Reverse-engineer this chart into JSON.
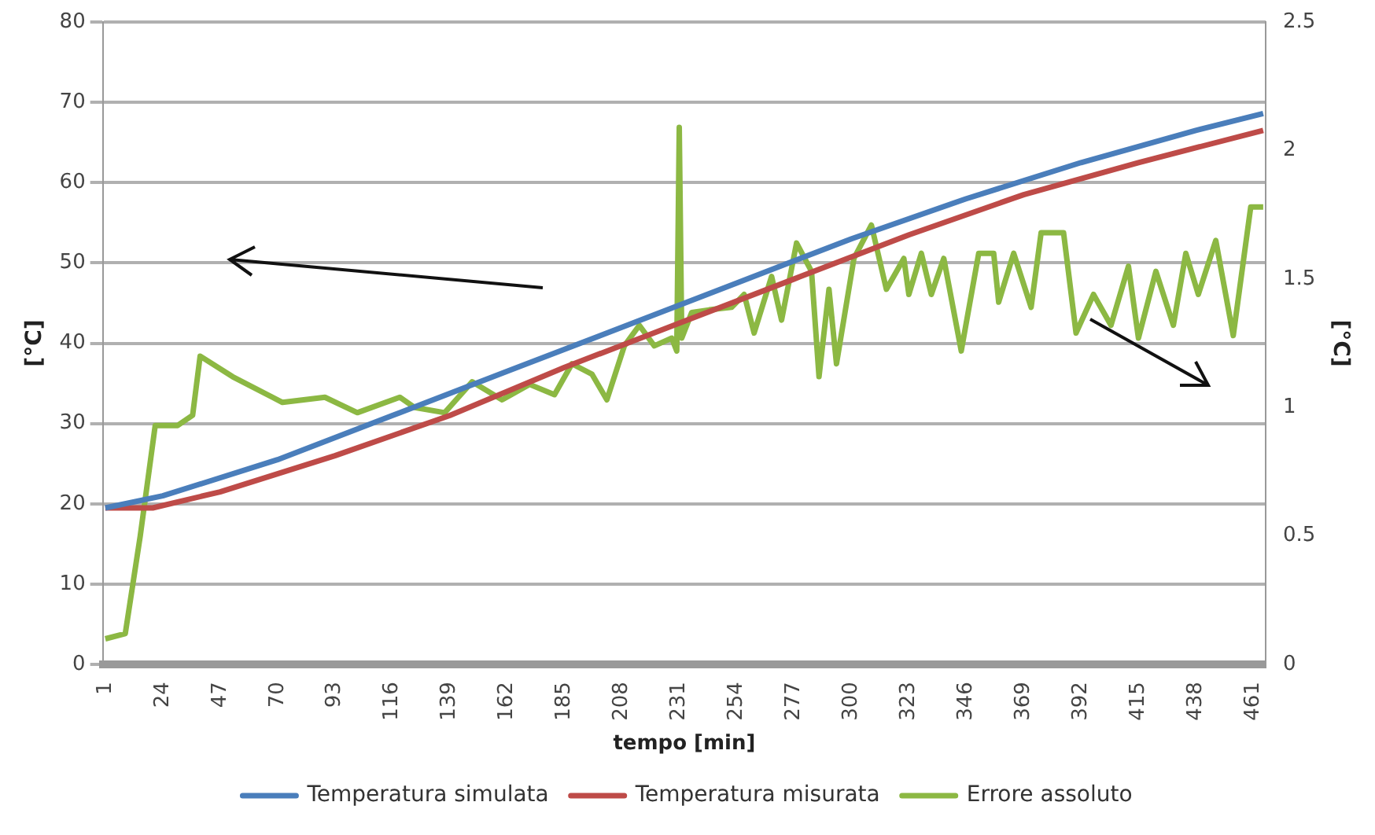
{
  "chart_data": {
    "type": "line",
    "xlabel": "tempo [min]",
    "ylabel": "[°C]",
    "y2label": "[°C]",
    "xlim": [
      0,
      466
    ],
    "xticks": [
      1,
      24,
      47,
      70,
      93,
      116,
      139,
      162,
      185,
      208,
      231,
      254,
      277,
      300,
      323,
      346,
      369,
      392,
      415,
      438,
      461
    ],
    "ylim": [
      0,
      80
    ],
    "yticks": [
      0,
      10,
      20,
      30,
      40,
      50,
      60,
      70,
      80
    ],
    "y2lim": [
      0,
      2.5
    ],
    "y2ticks": [
      0,
      0.5,
      1,
      1.5,
      2,
      2.5
    ],
    "grid": "y",
    "legend": "bottom",
    "marker": "none",
    "line_style": "solid",
    "series": [
      {
        "name": "Temperatura simulata",
        "color": "#4a7ebb",
        "x": [
          1,
          24,
          70,
          116,
          162,
          208,
          254,
          300,
          346,
          392,
          438,
          465
        ],
        "values": [
          19.5,
          21,
          25.5,
          31,
          36.5,
          42,
          47.5,
          53,
          58,
          62.5,
          66.5,
          68.6
        ]
      },
      {
        "name": "Temperatura misurata",
        "color": "#be4b48",
        "x": [
          1,
          20,
          47,
          93,
          139,
          185,
          231,
          277,
          323,
          369,
          415,
          465
        ],
        "values": [
          19.5,
          19.5,
          21.5,
          26,
          31,
          37,
          42.5,
          48,
          53.5,
          58.5,
          62.5,
          66.5
        ]
      },
      {
        "name": "Errore assoluto",
        "color": "#8cb843",
        "axis": "y2",
        "x": [
          1,
          9,
          15,
          21,
          30,
          36,
          39,
          52,
          72,
          89,
          102,
          119,
          125,
          137,
          148,
          160,
          171,
          181,
          188,
          196,
          202,
          209,
          215,
          221,
          228,
          230,
          231,
          232,
          236,
          243,
          252,
          257,
          261,
          268,
          272,
          278,
          284,
          287,
          291,
          294,
          301,
          308,
          314,
          321,
          323,
          328,
          332,
          337,
          344,
          351,
          357,
          359,
          365,
          372,
          376,
          385,
          390,
          397,
          404,
          411,
          415,
          422,
          429,
          434,
          439,
          446,
          453,
          460,
          465
        ],
        "values": [
          0.1,
          0.12,
          0.5,
          0.93,
          0.93,
          0.97,
          1.2,
          1.12,
          1.02,
          1.04,
          0.98,
          1.04,
          1.0,
          0.98,
          1.1,
          1.03,
          1.09,
          1.05,
          1.17,
          1.13,
          1.03,
          1.24,
          1.32,
          1.24,
          1.27,
          1.22,
          2.09,
          1.27,
          1.37,
          1.38,
          1.39,
          1.44,
          1.29,
          1.51,
          1.34,
          1.64,
          1.53,
          1.12,
          1.46,
          1.17,
          1.58,
          1.71,
          1.46,
          1.58,
          1.44,
          1.6,
          1.44,
          1.58,
          1.22,
          1.6,
          1.6,
          1.41,
          1.6,
          1.39,
          1.68,
          1.68,
          1.29,
          1.44,
          1.32,
          1.55,
          1.27,
          1.53,
          1.32,
          1.6,
          1.44,
          1.65,
          1.28,
          1.78,
          1.78
        ]
      }
    ]
  }
}
